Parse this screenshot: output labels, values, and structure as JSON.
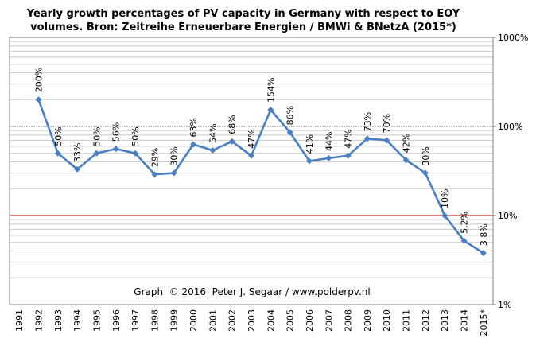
{
  "chart_data": {
    "type": "line",
    "title": [
      "Yearly growth percentages of PV capacity in Germany with respect to EOY",
      "volumes. Bron: Zeitreihe Erneuerbare Energien / BMWi & BNetzA (2015*)"
    ],
    "annotation": "Graph  © 2016  Peter J. Segaar / www.polderpv.nl",
    "y_scale": "log",
    "ylim": [
      1,
      1000
    ],
    "y_ticks": [
      {
        "value": 1,
        "label": "1%"
      },
      {
        "value": 10,
        "label": "10%"
      },
      {
        "value": 100,
        "label": "100%"
      },
      {
        "value": 1000,
        "label": "1000%"
      }
    ],
    "y_axis_side": "right",
    "reference_line": {
      "value": 10,
      "color": "#e41a1c"
    },
    "grid": true,
    "categories": [
      "1991",
      "1992",
      "1993",
      "1994",
      "1995",
      "1996",
      "1997",
      "1998",
      "1999",
      "2000",
      "2001",
      "2002",
      "2003",
      "2004",
      "2005",
      "2006",
      "2007",
      "2008",
      "2009",
      "2010",
      "2011",
      "2012",
      "2013",
      "2014",
      "2015*"
    ],
    "series": [
      {
        "color": "#4a7fc1",
        "points": [
          {
            "x": "1992",
            "y": 200,
            "label": "200%"
          },
          {
            "x": "1993",
            "y": 50,
            "label": "50%"
          },
          {
            "x": "1994",
            "y": 33,
            "label": "33%"
          },
          {
            "x": "1995",
            "y": 50,
            "label": "50%"
          },
          {
            "x": "1996",
            "y": 56,
            "label": "56%"
          },
          {
            "x": "1997",
            "y": 50,
            "label": "50%"
          },
          {
            "x": "1998",
            "y": 29,
            "label": "29%"
          },
          {
            "x": "1999",
            "y": 30,
            "label": "30%"
          },
          {
            "x": "2000",
            "y": 63,
            "label": "63%"
          },
          {
            "x": "2001",
            "y": 54,
            "label": "54%"
          },
          {
            "x": "2002",
            "y": 68,
            "label": "68%"
          },
          {
            "x": "2003",
            "y": 47,
            "label": "47%"
          },
          {
            "x": "2004",
            "y": 154,
            "label": "154%"
          },
          {
            "x": "2005",
            "y": 86,
            "label": "86%"
          },
          {
            "x": "2006",
            "y": 41,
            "label": "41%"
          },
          {
            "x": "2007",
            "y": 44,
            "label": "44%"
          },
          {
            "x": "2008",
            "y": 47,
            "label": "47%"
          },
          {
            "x": "2009",
            "y": 73,
            "label": "73%"
          },
          {
            "x": "2010",
            "y": 70,
            "label": "70%"
          },
          {
            "x": "2011",
            "y": 42,
            "label": "42%"
          },
          {
            "x": "2012",
            "y": 30,
            "label": "30%"
          },
          {
            "x": "2013",
            "y": 10,
            "label": "10%"
          },
          {
            "x": "2014",
            "y": 5.2,
            "label": "5,2%"
          },
          {
            "x": "2015*",
            "y": 3.8,
            "label": "3,8%"
          }
        ]
      }
    ],
    "colors": {
      "line": "#4a7fc1",
      "marker": "#4a7fc1",
      "grid_minor": "#c8c8c8",
      "grid_major": "#8c8c8c",
      "reference": "#e41a1c",
      "plot_border": "#808080",
      "plot_background": "#ffffff"
    }
  }
}
